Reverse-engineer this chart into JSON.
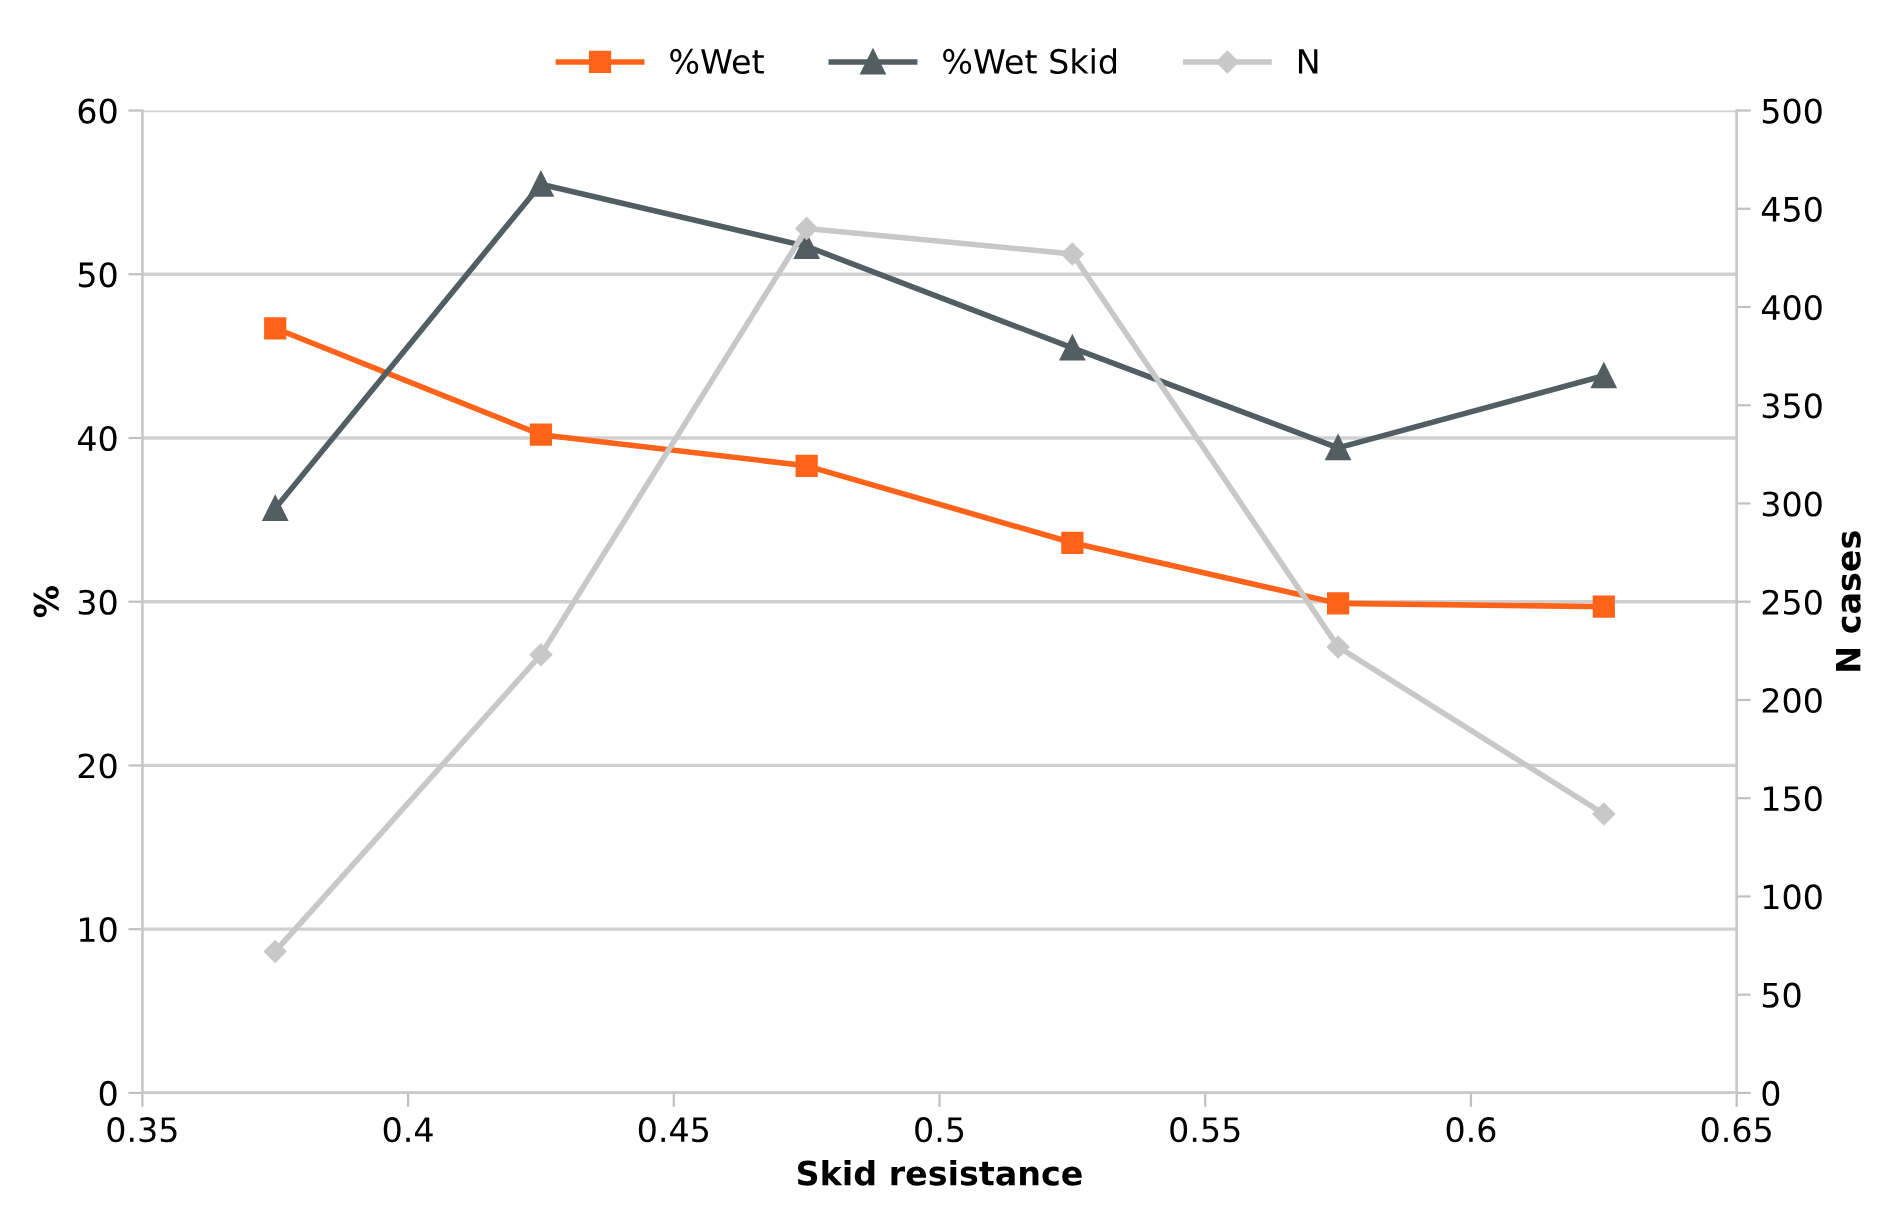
{
  "chart_data": {
    "type": "line",
    "xlabel": "Skid resistance",
    "ylabel": "%",
    "y2label": "N cases",
    "x": [
      0.375,
      0.425,
      0.475,
      0.525,
      0.575,
      0.625
    ],
    "series": [
      {
        "name": "%Wet",
        "color": "#ff6319",
        "marker": "square",
        "values": [
          46.7,
          40.2,
          38.3,
          33.6,
          29.9,
          29.7
        ]
      },
      {
        "name": "%Wet Skid",
        "color": "#525e62",
        "marker": "triangle",
        "values": [
          35.7,
          55.5,
          51.7,
          45.5,
          39.4,
          43.8
        ]
      },
      {
        "name": "N",
        "color": "#c8c8c8",
        "marker": "diamond",
        "axis": "y2",
        "values": [
          72,
          223,
          440,
          427,
          227,
          142
        ]
      }
    ],
    "xlim": [
      0.35,
      0.65
    ],
    "xticks": [
      0.35,
      0.4,
      0.45,
      0.5,
      0.55,
      0.6,
      0.65
    ],
    "ylim": [
      0,
      60
    ],
    "yticks": [
      0,
      10,
      20,
      30,
      40,
      50,
      60
    ],
    "y2lim": [
      0,
      500
    ],
    "y2ticks": [
      0,
      50,
      100,
      150,
      200,
      250,
      300,
      350,
      400,
      450,
      500
    ],
    "grid": "y",
    "legend": "top",
    "line_style": "solid"
  }
}
